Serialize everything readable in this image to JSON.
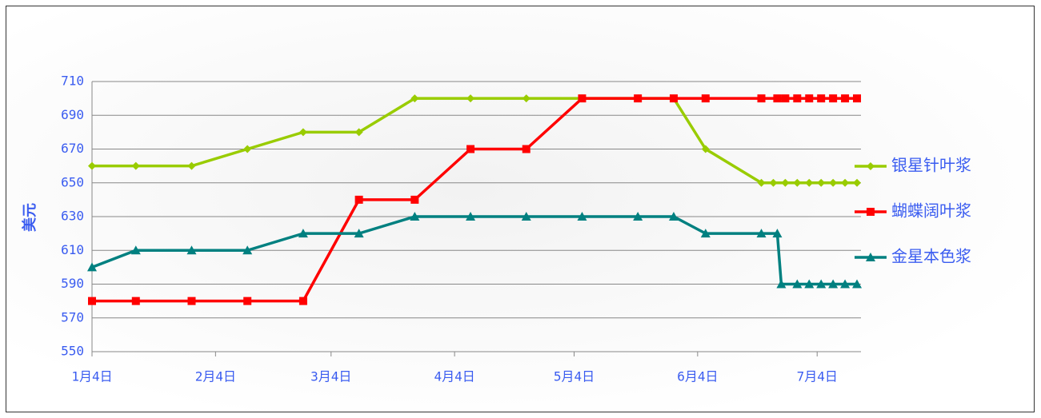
{
  "chart_data": {
    "type": "line",
    "ylabel": "美元",
    "xlim": [
      "01-04",
      "07-15"
    ],
    "xticks": [
      {
        "value": "01-04",
        "label": "1月4日"
      },
      {
        "value": "02-04",
        "label": "2月4日"
      },
      {
        "value": "03-04",
        "label": "3月4日"
      },
      {
        "value": "04-04",
        "label": "4月4日"
      },
      {
        "value": "05-04",
        "label": "5月4日"
      },
      {
        "value": "06-04",
        "label": "6月4日"
      },
      {
        "value": "07-04",
        "label": "7月4日"
      }
    ],
    "ylim": [
      550,
      710
    ],
    "yticks": [
      550,
      570,
      590,
      610,
      630,
      650,
      670,
      690,
      710
    ],
    "grid": true,
    "legend": "right",
    "series": [
      {
        "name": "银星针叶浆",
        "color": "#99cc00",
        "marker": "diamond",
        "x": [
          "01-04",
          "01-15",
          "01-29",
          "02-12",
          "02-26",
          "03-11",
          "03-25",
          "04-08",
          "04-22",
          "05-06",
          "05-20",
          "05-29",
          "06-06",
          "06-20",
          "06-23",
          "06-26",
          "06-29",
          "07-02",
          "07-05",
          "07-08",
          "07-11",
          "07-14"
        ],
        "values": [
          660,
          660,
          660,
          670,
          680,
          680,
          700,
          700,
          700,
          700,
          700,
          700,
          670,
          650,
          650,
          650,
          650,
          650,
          650,
          650,
          650,
          650
        ]
      },
      {
        "name": "蝴蝶阔叶浆",
        "color": "#ff0000",
        "marker": "square",
        "x": [
          "01-04",
          "01-15",
          "01-29",
          "02-12",
          "02-26",
          "03-11",
          "03-25",
          "04-08",
          "04-22",
          "05-06",
          "05-20",
          "05-29",
          "06-06",
          "06-20",
          "06-24",
          "06-26",
          "06-29",
          "07-02",
          "07-05",
          "07-08",
          "07-11",
          "07-14"
        ],
        "values": [
          580,
          580,
          580,
          580,
          580,
          640,
          640,
          670,
          670,
          700,
          700,
          700,
          700,
          700,
          700,
          700,
          700,
          700,
          700,
          700,
          700,
          700
        ]
      },
      {
        "name": "金星本色浆",
        "color": "#008080",
        "marker": "triangle",
        "x": [
          "01-04",
          "01-15",
          "01-29",
          "02-12",
          "02-26",
          "03-11",
          "03-25",
          "04-08",
          "04-22",
          "05-06",
          "05-20",
          "05-29",
          "06-06",
          "06-20",
          "06-24",
          "06-25",
          "06-29",
          "07-02",
          "07-05",
          "07-08",
          "07-11",
          "07-14"
        ],
        "values": [
          600,
          610,
          610,
          610,
          620,
          620,
          630,
          630,
          630,
          630,
          630,
          630,
          620,
          620,
          620,
          590,
          590,
          590,
          590,
          590,
          590,
          590
        ]
      }
    ]
  }
}
